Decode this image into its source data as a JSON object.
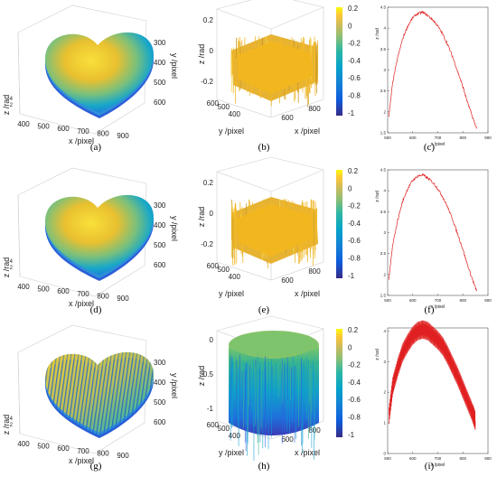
{
  "panels": [
    {
      "id": "a",
      "caption": "(a)",
      "kind": "surface3d",
      "xlabel": "x /pixel",
      "ylabel": "y /pixel",
      "zlabel": "z /rad",
      "xticks": [
        "400",
        "500",
        "600",
        "700",
        "800",
        "900"
      ],
      "yticks": [
        "300",
        "400",
        "500",
        "600"
      ],
      "zticks": [
        "2",
        "4"
      ]
    },
    {
      "id": "b",
      "caption": "(b)",
      "kind": "noise3d",
      "xlabel": "x /pixel",
      "ylabel": "y /pixel",
      "zlabel": "z /rad",
      "xticks": [
        "600",
        "800"
      ],
      "yticks": [
        "400",
        "500",
        "600"
      ],
      "zticks": [
        "0.2",
        "0",
        "-0.2"
      ],
      "colorbar_ticks": [
        "0.2",
        "0",
        "-0.2",
        "-0.4",
        "-0.6",
        "-0.8",
        "-1"
      ]
    },
    {
      "id": "c",
      "caption": "(c)",
      "kind": "profile",
      "xlabel": "x /pixel",
      "ylabel": "z /rad",
      "xticks": [
        "500",
        "600",
        "700",
        "800",
        "900"
      ],
      "yticks": [
        "1.5",
        "2",
        "2.5",
        "3",
        "3.5",
        "4",
        "4.5"
      ]
    },
    {
      "id": "d",
      "caption": "(d)",
      "kind": "surface3d",
      "xlabel": "x /pixel",
      "ylabel": "y /pixel",
      "zlabel": "z /rad",
      "xticks": [
        "400",
        "500",
        "600",
        "700",
        "800",
        "900"
      ],
      "yticks": [
        "300",
        "400",
        "500",
        "600"
      ],
      "zticks": [
        "2",
        "4"
      ]
    },
    {
      "id": "e",
      "caption": "(e)",
      "kind": "noise3d",
      "xlabel": "x /pixel",
      "ylabel": "y /pixel",
      "zlabel": "z /rad",
      "xticks": [
        "600",
        "800"
      ],
      "yticks": [
        "400",
        "500",
        "600"
      ],
      "zticks": [
        "0.2",
        "0",
        "-0.2"
      ],
      "colorbar_ticks": [
        "0.2",
        "0",
        "-0.2",
        "-0.4",
        "-0.6",
        "-0.8",
        "-1"
      ]
    },
    {
      "id": "f",
      "caption": "(f)",
      "kind": "profile",
      "xlabel": "x /pixel",
      "ylabel": "z /rad",
      "xticks": [
        "500",
        "600",
        "700",
        "800",
        "900"
      ],
      "yticks": [
        "1.5",
        "2",
        "2.5",
        "3",
        "3.5",
        "4",
        "4.5"
      ]
    },
    {
      "id": "g",
      "caption": "(g)",
      "kind": "surface3d",
      "xlabel": "x /pixel",
      "ylabel": "y /pixel",
      "zlabel": "z /rad",
      "xticks": [
        "400",
        "500",
        "600",
        "700",
        "800",
        "900"
      ],
      "yticks": [
        "300",
        "400",
        "500",
        "600"
      ],
      "zticks": [
        "2",
        "4"
      ]
    },
    {
      "id": "h",
      "caption": "(h)",
      "kind": "error3d",
      "xlabel": "x /pixel",
      "ylabel": "y /pixel",
      "zlabel": "z /rad",
      "xticks": [
        "600",
        "800"
      ],
      "yticks": [
        "400",
        "500",
        "600"
      ],
      "zticks": [
        "0",
        "-0.5",
        "-1"
      ],
      "colorbar_ticks": [
        "0.2",
        "0",
        "-0.2",
        "-0.4",
        "-0.6",
        "-0.8",
        "-1"
      ]
    },
    {
      "id": "i",
      "caption": "(i)",
      "kind": "profile",
      "xlabel": "x /pixel",
      "ylabel": "z /rad",
      "xticks": [
        "500",
        "600",
        "700",
        "800",
        "900"
      ],
      "yticks": [
        "0",
        "1",
        "2",
        "3",
        "4"
      ]
    }
  ],
  "chart_data": [
    {
      "panel": "c",
      "type": "line",
      "xlabel": "x /pixel",
      "ylabel": "z /rad",
      "xlim": [
        500,
        900
      ],
      "ylim": [
        1.5,
        4.5
      ],
      "x": [
        505,
        520,
        540,
        560,
        580,
        600,
        620,
        640,
        660,
        680,
        700,
        720,
        740,
        760,
        780,
        800,
        820,
        840,
        855
      ],
      "values": [
        1.9,
        2.7,
        3.3,
        3.75,
        4.05,
        4.25,
        4.35,
        4.38,
        4.3,
        4.2,
        4.05,
        3.85,
        3.6,
        3.3,
        2.95,
        2.6,
        2.2,
        1.85,
        1.6
      ],
      "color": "#e02020"
    },
    {
      "panel": "f",
      "type": "line",
      "xlabel": "x /pixel",
      "ylabel": "z /rad",
      "xlim": [
        500,
        900
      ],
      "ylim": [
        1.5,
        4.5
      ],
      "x": [
        505,
        520,
        540,
        560,
        580,
        600,
        620,
        640,
        660,
        680,
        700,
        720,
        740,
        760,
        780,
        800,
        820,
        840,
        855
      ],
      "values": [
        1.9,
        2.7,
        3.3,
        3.75,
        4.05,
        4.25,
        4.35,
        4.38,
        4.3,
        4.2,
        4.05,
        3.85,
        3.6,
        3.3,
        2.95,
        2.6,
        2.2,
        1.85,
        1.6
      ],
      "color": "#e02020"
    },
    {
      "panel": "i",
      "type": "line",
      "xlabel": "x /pixel",
      "ylabel": "z /rad",
      "xlim": [
        500,
        900
      ],
      "ylim": [
        0,
        4.1
      ],
      "x": [
        505,
        520,
        540,
        560,
        580,
        600,
        620,
        640,
        660,
        680,
        700,
        720,
        740,
        760,
        780,
        800,
        820,
        840,
        850
      ],
      "values": [
        1.2,
        2.2,
        2.8,
        3.3,
        3.6,
        3.85,
        4.0,
        4.05,
        4.0,
        3.85,
        3.7,
        3.5,
        3.2,
        2.85,
        2.5,
        2.1,
        1.7,
        1.3,
        1.05
      ],
      "oscillation_amplitude": 0.6,
      "color": "#e02020"
    }
  ],
  "colors": {
    "line": "#e02020",
    "parula": [
      "#352a87",
      "#0f5cdd",
      "#1481d6",
      "#06a4ca",
      "#2eb7a4",
      "#87bf77",
      "#d1bb59",
      "#fec832",
      "#f9fb0e"
    ]
  }
}
